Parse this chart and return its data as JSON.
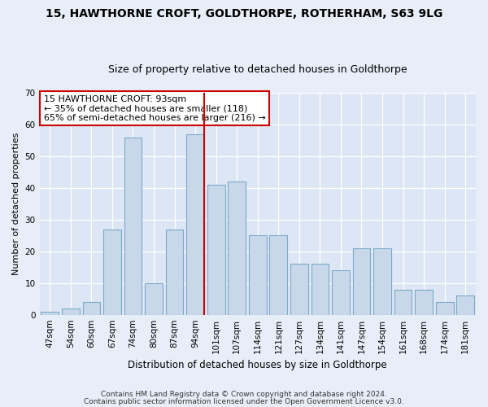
{
  "title1": "15, HAWTHORNE CROFT, GOLDTHORPE, ROTHERHAM, S63 9LG",
  "title2": "Size of property relative to detached houses in Goldthorpe",
  "xlabel": "Distribution of detached houses by size in Goldthorpe",
  "ylabel": "Number of detached properties",
  "categories": [
    "47sqm",
    "54sqm",
    "60sqm",
    "67sqm",
    "74sqm",
    "80sqm",
    "87sqm",
    "94sqm",
    "101sqm",
    "107sqm",
    "114sqm",
    "121sqm",
    "127sqm",
    "134sqm",
    "141sqm",
    "147sqm",
    "154sqm",
    "161sqm",
    "168sqm",
    "174sqm",
    "181sqm"
  ],
  "heights": [
    1,
    2,
    4,
    27,
    56,
    10,
    27,
    57,
    41,
    42,
    25,
    25,
    16,
    16,
    14,
    21,
    21,
    8,
    8,
    4,
    6
  ],
  "bar_color": "#c8d8ea",
  "bar_edge_color": "#7aaac8",
  "fig_bg_color": "#e8eef8",
  "plot_bg_color": "#dde6f4",
  "grid_color": "#ffffff",
  "vline_color": "#cc0000",
  "vline_x_idx": 7.42,
  "annotation_text": "15 HAWTHORNE CROFT: 93sqm\n← 35% of detached houses are smaller (118)\n65% of semi-detached houses are larger (216) →",
  "annotation_box_facecolor": "#ffffff",
  "annotation_box_edgecolor": "#cc0000",
  "footer1": "Contains HM Land Registry data © Crown copyright and database right 2024.",
  "footer2": "Contains public sector information licensed under the Open Government Licence v3.0.",
  "ylim": [
    0,
    70
  ],
  "yticks": [
    0,
    10,
    20,
    30,
    40,
    50,
    60,
    70
  ],
  "title1_fontsize": 10,
  "title2_fontsize": 9,
  "ylabel_fontsize": 8,
  "xlabel_fontsize": 8.5,
  "tick_fontsize": 7.5,
  "annotation_fontsize": 8,
  "footer_fontsize": 6.5
}
